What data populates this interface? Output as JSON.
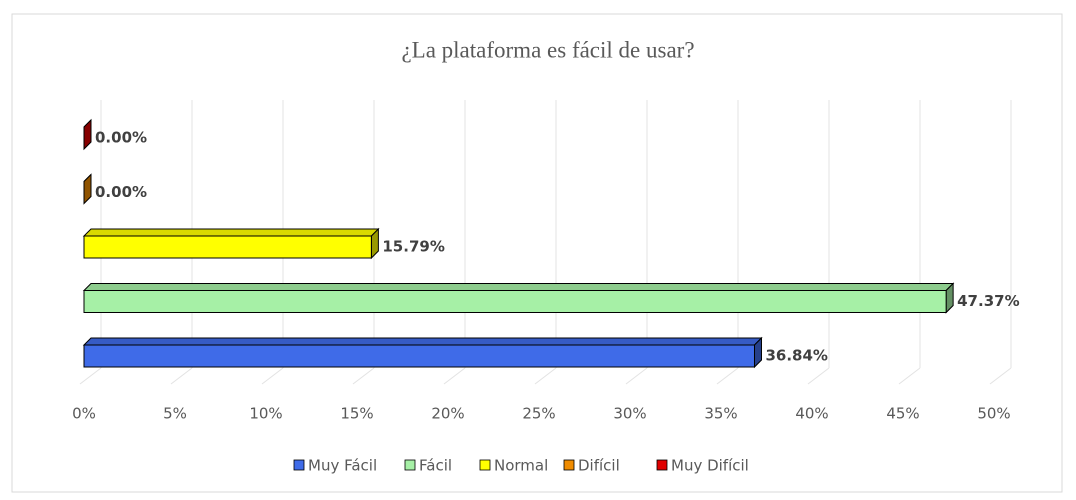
{
  "chart_data": {
    "type": "bar",
    "orientation": "horizontal",
    "title": "¿La plataforma es fácil  de usar?",
    "series": [
      {
        "name": "Muy Fácil",
        "color": "#3f6be8",
        "values": [
          36.84
        ],
        "value_labels": [
          "36.84%"
        ]
      },
      {
        "name": "Fácil",
        "color": "#a6f0a6",
        "values": [
          47.37
        ],
        "value_labels": [
          "47.37%"
        ]
      },
      {
        "name": "Normal",
        "color": "#ffff00",
        "values": [
          15.79
        ],
        "value_labels": [
          "15.79%"
        ]
      },
      {
        "name": "Difícil",
        "color": "#f08c00",
        "values": [
          0
        ],
        "value_labels": [
          "0.00%"
        ]
      },
      {
        "name": "Muy Difícil",
        "color": "#e00000",
        "values": [
          0
        ],
        "value_labels": [
          "0.00%"
        ]
      }
    ],
    "xlim": [
      0,
      50
    ],
    "xticks": [
      {
        "value": 0,
        "label": "0%"
      },
      {
        "value": 5,
        "label": "5%"
      },
      {
        "value": 10,
        "label": "10%"
      },
      {
        "value": 15,
        "label": "15%"
      },
      {
        "value": 20,
        "label": "20%"
      },
      {
        "value": 25,
        "label": "25%"
      },
      {
        "value": 30,
        "label": "30%"
      },
      {
        "value": 35,
        "label": "35%"
      },
      {
        "value": 40,
        "label": "40%"
      },
      {
        "value": 45,
        "label": "45%"
      },
      {
        "value": 50,
        "label": "50%"
      }
    ],
    "grid": true,
    "legend": "bottom"
  }
}
